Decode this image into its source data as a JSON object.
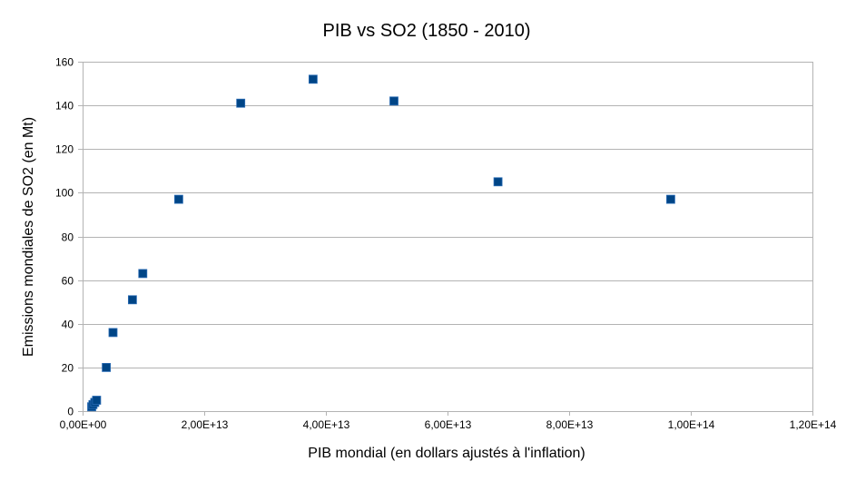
{
  "chart_data": {
    "type": "scatter",
    "title": "PIB vs SO2 (1850 - 2010)",
    "xlabel": "PIB mondial (en dollars ajustés à l'inflation)",
    "ylabel": "Emissions mondiales de SO2 (en Mt)",
    "xlim": [
      0,
      120000000000000
    ],
    "ylim": [
      0,
      160
    ],
    "x_ticks": [
      {
        "value": 0,
        "label": "0,00E+00"
      },
      {
        "value": 20000000000000,
        "label": "2,00E+13"
      },
      {
        "value": 40000000000000,
        "label": "4,00E+13"
      },
      {
        "value": 60000000000000,
        "label": "6,00E+13"
      },
      {
        "value": 80000000000000,
        "label": "8,00E+13"
      },
      {
        "value": 100000000000000,
        "label": "1,00E+14"
      },
      {
        "value": 120000000000000,
        "label": "1,20E+14"
      }
    ],
    "y_ticks": [
      {
        "value": 0,
        "label": "0"
      },
      {
        "value": 20,
        "label": "20"
      },
      {
        "value": 40,
        "label": "40"
      },
      {
        "value": 60,
        "label": "60"
      },
      {
        "value": 80,
        "label": "80"
      },
      {
        "value": 100,
        "label": "100"
      },
      {
        "value": 120,
        "label": "120"
      },
      {
        "value": 140,
        "label": "140"
      },
      {
        "value": 160,
        "label": "160"
      }
    ],
    "grid": true,
    "marker_color": "#004586",
    "points": [
      {
        "x": 1500000000000,
        "y": 2
      },
      {
        "x": 1700000000000,
        "y": 3
      },
      {
        "x": 2000000000000,
        "y": 4
      },
      {
        "x": 2300000000000,
        "y": 5
      },
      {
        "x": 3900000000000,
        "y": 20
      },
      {
        "x": 5000000000000,
        "y": 36
      },
      {
        "x": 8200000000000,
        "y": 51
      },
      {
        "x": 9900000000000,
        "y": 63
      },
      {
        "x": 15800000000000,
        "y": 97
      },
      {
        "x": 26000000000000,
        "y": 141
      },
      {
        "x": 37900000000000,
        "y": 152
      },
      {
        "x": 51200000000000,
        "y": 142
      },
      {
        "x": 68300000000000,
        "y": 105
      },
      {
        "x": 96700000000000,
        "y": 97
      }
    ]
  }
}
